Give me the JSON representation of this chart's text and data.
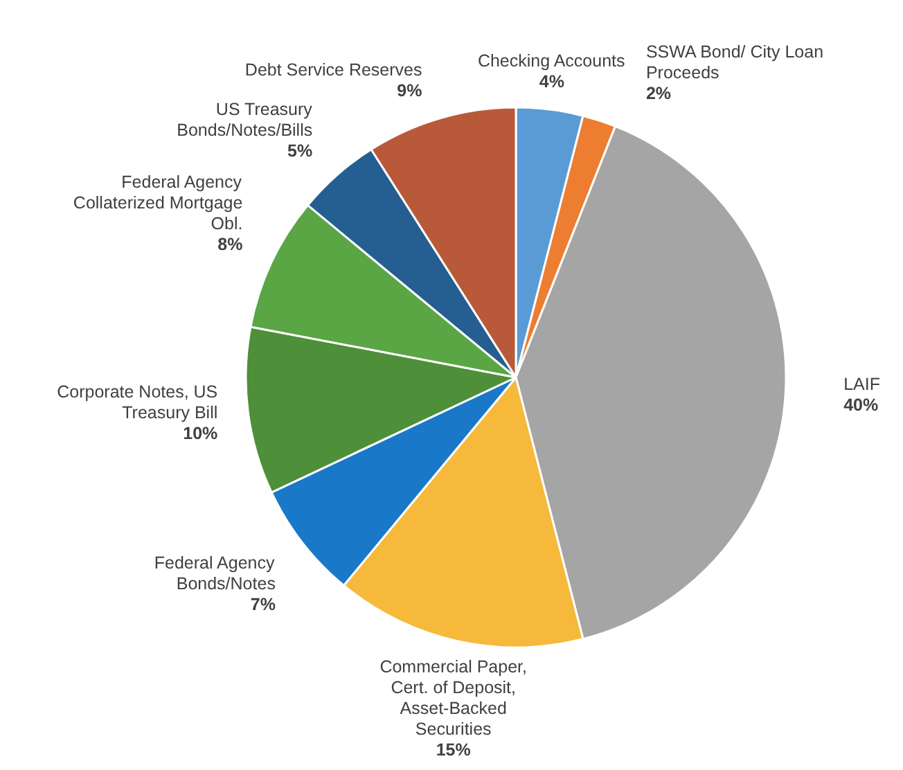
{
  "chart_data": {
    "type": "pie",
    "categories": [
      "Checking Accounts",
      "SSWA Bond/ City Loan Proceeds",
      "LAIF",
      "Commercial Paper, Cert. of Deposit, Asset-Backed Securities",
      "Federal Agency Bonds/Notes",
      "Corporate Notes, US Treasury Bill",
      "Federal Agency Collaterized Mortgage Obl.",
      "US Treasury Bonds/Notes/Bills",
      "Debt Service Reserves"
    ],
    "values": [
      4,
      2,
      40,
      15,
      7,
      10,
      8,
      5,
      9
    ],
    "value_labels": [
      "4%",
      "2%",
      "40%",
      "15%",
      "7%",
      "10%",
      "8%",
      "5%",
      "9%"
    ],
    "colors": [
      "#5b9bd5",
      "#ed7d31",
      "#a5a5a5",
      "#f6b93b",
      "#1a78c9",
      "#4e8f3a",
      "#5aa544",
      "#255e91",
      "#b85a3a"
    ]
  }
}
